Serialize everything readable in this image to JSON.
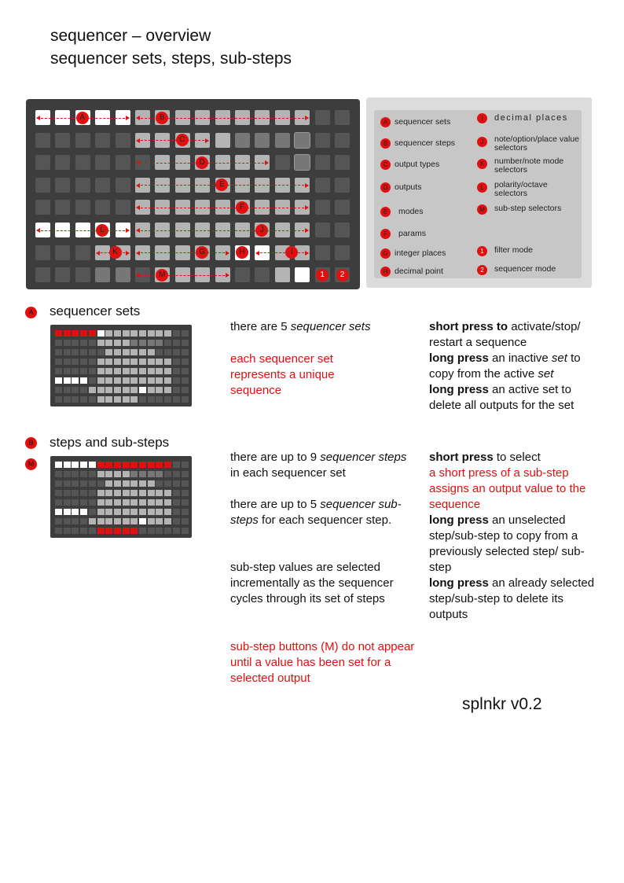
{
  "title_line1": "sequencer – overview",
  "title_line2": "sequencer sets, steps, sub-steps",
  "colors": {
    "accent": "#e01010",
    "grid_bg": "#3d3d3d",
    "btn_off": "#555555",
    "btn_dim": "#777777",
    "btn_mid": "#b4b4b4",
    "btn_on": "#e8e8e8",
    "btn_white": "#ffffff"
  },
  "grid_labels": {
    "A": "A",
    "B": "B",
    "C": "C",
    "D": "D",
    "E": "E",
    "F": "F",
    "G": "G",
    "H": "H",
    "I": "I",
    "J": "J",
    "K": "K",
    "L": "L",
    "M": "M",
    "one": "1",
    "two": "2"
  },
  "legend": {
    "left": [
      {
        "key": "A",
        "text": "sequencer sets"
      },
      {
        "key": "B",
        "text": "sequencer steps"
      },
      {
        "key": "C",
        "text": "output types"
      },
      {
        "key": "D",
        "text": "outputs"
      },
      {
        "key": "E",
        "text": "modes"
      },
      {
        "key": "F",
        "text": "params"
      },
      {
        "key": "G",
        "text": "integer places"
      },
      {
        "key": "H",
        "text": "decimal point"
      }
    ],
    "right": [
      {
        "key": "I",
        "text": "decimal places"
      },
      {
        "key": "J",
        "text": "note/option/place value selectors"
      },
      {
        "key": "K",
        "text": "number/note mode selectors"
      },
      {
        "key": "L",
        "text": "polarity/octave selectors"
      },
      {
        "key": "M",
        "text": "sub-step selectors"
      },
      {
        "key": "1",
        "text": "filter mode"
      },
      {
        "key": "2",
        "text": "sequencer mode"
      }
    ]
  },
  "section_a": {
    "badge": "A",
    "title": "sequencer sets",
    "desc1_pre": "there are 5 ",
    "desc1_em": "sequencer sets",
    "desc2_red": "each sequencer set represents a unique sequence",
    "r1_bold": "short press to",
    "r1_rest": " activate/stop/ restart a sequence",
    "r2_bold": "long press",
    "r2_pre": " an inactive ",
    "r2_em": "set",
    "r2_mid": " to copy from the active ",
    "r2_em2": "set",
    "r3_bold": "long press",
    "r3_rest": " an active set to delete all outputs for the set"
  },
  "section_b": {
    "badge": "B",
    "badge2": "M",
    "title": "steps and sub-steps",
    "p1_pre": "there are up to 9 ",
    "p1_em": "sequencer steps",
    "p1_post": " in each sequencer set",
    "p2_pre": "there are up to 5 ",
    "p2_em": "sequencer sub-steps",
    "p2_post": " for each sequencer step.",
    "p3": "sub-step values are selected incrementally as the sequencer cycles through its set of steps",
    "p4_red": "sub-step buttons (M) do not appear until a value has been set for a selected output",
    "r1_bold": "short press",
    "r1_rest": " to select",
    "r2_red": "a short press of a sub-step assigns an output value to the sequence",
    "r3_bold": "long press",
    "r3_rest": " an unselected step/sub-step to copy from a previously selected step/ sub-step",
    "r4_bold": "long press",
    "r4_rest": " an already selected step/sub-step to delete its outputs"
  },
  "footer": "splnkr v0.2"
}
